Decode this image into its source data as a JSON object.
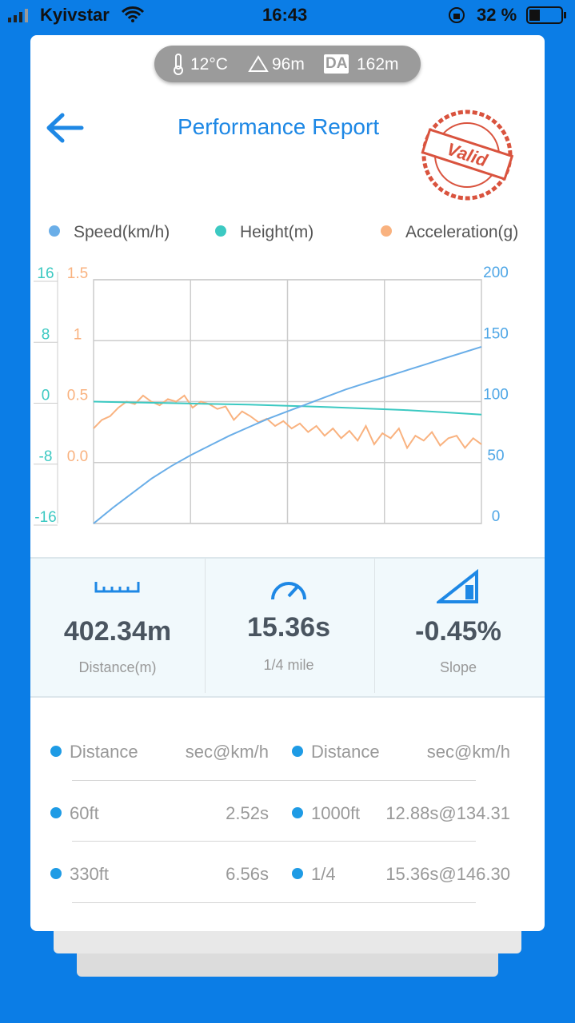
{
  "status_bar": {
    "carrier": "Kyivstar",
    "time": "16:43",
    "battery": "32 %"
  },
  "conditions": {
    "temperature": "12°C",
    "altitude": "96m",
    "da_badge": "DA",
    "density_altitude": "162m"
  },
  "header": {
    "title": "Performance Report",
    "stamp": "Valid"
  },
  "chart_data": {
    "type": "line",
    "series": [
      {
        "name": "Speed(km/h)",
        "color": "#6aaee8",
        "axis": "y2",
        "values": [
          0,
          13,
          25,
          37,
          47,
          56,
          64,
          72,
          79,
          86,
          92,
          98,
          104,
          110,
          115,
          120,
          125,
          130,
          135,
          140,
          145
        ]
      },
      {
        "name": "Height(m)",
        "color": "#3cc9c2",
        "axis": "y",
        "values": [
          0,
          -0.1,
          -0.2,
          -0.3,
          -0.4,
          -0.55,
          -0.7,
          -0.9,
          -1.1,
          -1.4,
          -1.7
        ]
      },
      {
        "name": "Acceleration(g)",
        "color": "#f9b27f",
        "axis": "y3",
        "values": [
          0.28,
          0.35,
          0.38,
          0.45,
          0.5,
          0.48,
          0.55,
          0.5,
          0.47,
          0.52,
          0.5,
          0.55,
          0.45,
          0.5,
          0.48,
          0.44,
          0.46,
          0.35,
          0.42,
          0.38,
          0.33,
          0.36,
          0.3,
          0.34,
          0.28,
          0.32,
          0.25,
          0.3,
          0.22,
          0.28,
          0.2,
          0.26,
          0.18,
          0.3,
          0.15,
          0.24,
          0.2,
          0.28,
          0.12,
          0.22,
          0.18,
          0.25,
          0.14,
          0.2,
          0.22,
          0.12,
          0.2,
          0.15
        ]
      }
    ],
    "ylim": [
      -16,
      16
    ],
    "yticks": [
      16,
      8,
      0,
      -8,
      -16
    ],
    "y2lim": [
      0,
      200
    ],
    "y2ticks": [
      200,
      150,
      100,
      50,
      0
    ],
    "y3lim": [
      -0.5,
      1.5
    ],
    "y3ticks": [
      1.5,
      1,
      0.5,
      {
        "value": 0,
        "label": "0.0"
      }
    ],
    "grid": true
  },
  "summary": [
    {
      "value": "402.34m",
      "label": "Distance(m)"
    },
    {
      "value": "15.36s",
      "label": "1/4 mile"
    },
    {
      "value": "-0.45%",
      "label": "Slope"
    }
  ],
  "table": {
    "header": [
      "Distance",
      "sec@km/h",
      "Distance",
      "sec@km/h"
    ],
    "rows": [
      [
        "60ft",
        "2.52s",
        "1000ft",
        "12.88s@134.31"
      ],
      [
        "330ft",
        "6.56s",
        "1/4",
        "15.36s@146.30"
      ]
    ]
  }
}
